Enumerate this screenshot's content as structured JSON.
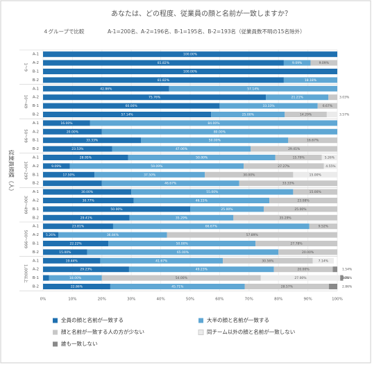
{
  "chart_data": {
    "type": "stacked-barh",
    "title": "あなたは、どの程度、従業員の顔と名前が一致しますか？",
    "subtitle": "４グループで比較",
    "note": "A-1=200名、A-2=196名、B-1=195名、B-2=193名（従業員数不明の15名除外）",
    "y_label": "従業員規模（人）",
    "groups": [
      {
        "name": "1～9",
        "categories": [
          "A-1",
          "A-2",
          "B-1",
          "B-2"
        ]
      },
      {
        "name": "10～49",
        "categories": [
          "A-1",
          "A-2",
          "B-1",
          "B-2"
        ]
      },
      {
        "name": "50～99",
        "categories": [
          "A-1",
          "A-2",
          "B-1",
          "B-2"
        ]
      },
      {
        "name": "100～299",
        "categories": [
          "A-1",
          "A-2",
          "B-1",
          "B-2"
        ]
      },
      {
        "name": "300～499",
        "categories": [
          "A-1",
          "A-2",
          "B-1",
          "B-2"
        ]
      },
      {
        "name": "500～999",
        "categories": [
          "A-1",
          "A-2",
          "B-1",
          "B-2"
        ]
      },
      {
        "name": "1,000以上",
        "categories": [
          "A-1",
          "A-2",
          "B-1",
          "B-2"
        ]
      }
    ],
    "xlim": [
      0,
      100
    ],
    "xticks": [
      {
        "value": 0,
        "label": "0%"
      },
      {
        "value": 10,
        "label": "10%"
      },
      {
        "value": 20,
        "label": "20%"
      },
      {
        "value": 30,
        "label": "30%"
      },
      {
        "value": 40,
        "label": "40%"
      },
      {
        "value": 50,
        "label": "50%"
      },
      {
        "value": 60,
        "label": "60%"
      },
      {
        "value": 70,
        "label": "70%"
      },
      {
        "value": 80,
        "label": "80%"
      },
      {
        "value": 90,
        "label": "90%"
      },
      {
        "value": 100,
        "label": "100%"
      }
    ],
    "series": [
      {
        "name": "全員の顔と名前が一致する",
        "color": "#1f70b0",
        "text_color": "#ffffff",
        "values": [
          100,
          81.82,
          100,
          81.82,
          42.86,
          75.76,
          60,
          57.14,
          16,
          20,
          33.33,
          23.53,
          28.95,
          9.09,
          17.5,
          20,
          30,
          30.77,
          50,
          29.41,
          23.81,
          5.26,
          22.22,
          15,
          19.44,
          29.23,
          2,
          22.86
        ],
        "value_labels": [
          "100.00%",
          "81.82%",
          "100.00%",
          "81.82%",
          "42.86%",
          "75.76%",
          "60.00%",
          "57.14%",
          "16.00%",
          "20.00%",
          "33.33%",
          "23.53%",
          "28.95%",
          "9.09%",
          "17.50%",
          null,
          "30.00%",
          "30.77%",
          "50.00%",
          "29.41%",
          "23.81%",
          "5.26%",
          "22.22%",
          "15.00%",
          "19.44%",
          "29.23%",
          "2.00%",
          "22.86%"
        ]
      },
      {
        "name": "大半の顔と名前が一致する",
        "color": "#5fa7d4",
        "text_color": "#ffffff",
        "values": [
          0,
          9.09,
          0,
          18.18,
          57.14,
          21.21,
          33.33,
          25,
          84,
          80,
          50,
          47.06,
          50,
          59.09,
          37.5,
          46.67,
          55,
          46.15,
          25,
          35.29,
          66.67,
          36.84,
          50,
          65,
          41.67,
          49.23,
          18,
          45.71
        ],
        "value_labels": [
          null,
          "9.09%",
          null,
          "18.18%",
          "57.14%",
          "21.21%",
          "33.33%",
          "25.00%",
          "84.00%",
          "80.00%",
          "50.00%",
          "47.06%",
          "50.00%",
          "59.09%",
          "37.50%",
          "46.67%",
          "55.00%",
          "46.15%",
          "25.00%",
          "35.29%",
          "66.67%",
          "36.84%",
          "50.00%",
          "65.00%",
          "41.67%",
          "49.23%",
          "18.00%",
          "45.71%"
        ]
      },
      {
        "name": "顔と名前が一致する人の方が少ない",
        "color": "#c8c8c8",
        "text_color": "#555555",
        "values": [
          0,
          9.09,
          0,
          0,
          0,
          3.03,
          6.67,
          14.29,
          0,
          0,
          16.67,
          29.41,
          15.79,
          27.27,
          30,
          33.33,
          15,
          23.08,
          25,
          35.29,
          9.52,
          57.89,
          27.78,
          20,
          30.56,
          20,
          54,
          28.57
        ],
        "value_labels": [
          null,
          "9.09%",
          null,
          null,
          null,
          "3.03%",
          "6.67%",
          "14.29%",
          null,
          null,
          "16.67%",
          "29.41%",
          "15.79%",
          "27.27%",
          "30.00%",
          "33.33%",
          "15.00%",
          "23.08%",
          "25.00%",
          "35.29%",
          "9.52%",
          "57.89%",
          "27.78%",
          "20.00%",
          "30.56%",
          "20.00%",
          "54.00%",
          "28.57%"
        ]
      },
      {
        "name": "同チーム以外の顔と名前が一致しない",
        "color": "#ebebeb",
        "text_color": "#555555",
        "values": [
          0,
          0,
          0,
          0,
          0,
          0,
          0,
          3.57,
          0,
          0,
          0,
          0,
          5.26,
          4.55,
          15,
          0,
          0,
          0,
          0,
          0,
          0,
          0,
          0,
          0,
          7.14,
          0,
          27,
          0
        ],
        "value_labels": [
          null,
          null,
          null,
          null,
          null,
          null,
          null,
          "3.57%",
          null,
          null,
          null,
          null,
          "5.26%",
          "4.55%",
          "15.00%",
          null,
          null,
          null,
          null,
          null,
          null,
          null,
          null,
          null,
          "7.14%",
          null,
          "27.00%",
          null
        ]
      },
      {
        "name": "誰も一致しない",
        "color": "#8a8a8a",
        "text_color": "#444444",
        "values": [
          0,
          0,
          0,
          0,
          0,
          0,
          0,
          0,
          0,
          0,
          0,
          0,
          0,
          0,
          0,
          0,
          0,
          0,
          0,
          0,
          0,
          0,
          0,
          0,
          0,
          1.54,
          1,
          2.86
        ],
        "value_labels": [
          null,
          null,
          null,
          null,
          null,
          null,
          null,
          null,
          null,
          null,
          null,
          null,
          null,
          null,
          null,
          null,
          null,
          null,
          null,
          null,
          null,
          null,
          null,
          null,
          null,
          "1.54%",
          "1.00%",
          "2.86%"
        ]
      }
    ]
  }
}
